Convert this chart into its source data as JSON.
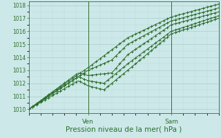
{
  "bg_color": "#cce8e8",
  "grid_major_color": "#aacccc",
  "grid_minor_color": "#bbdddd",
  "line_color": "#2d6e2d",
  "xlabel": "Pression niveau de la mer( hPa )",
  "xlabel_fontsize": 7.5,
  "ylim": [
    1009.7,
    1018.3
  ],
  "xlim": [
    0,
    96
  ],
  "yticks": [
    1010,
    1011,
    1012,
    1013,
    1014,
    1015,
    1016,
    1017,
    1018
  ],
  "tick_label_color": "#2d6e2d",
  "ven_x": 30,
  "sam_x": 72,
  "series": [
    [
      [
        0,
        1010
      ],
      [
        30,
        1013.2
      ],
      [
        50,
        1015.5
      ],
      [
        72,
        1017.1
      ],
      [
        96,
        1018.1
      ]
    ],
    [
      [
        0,
        1010
      ],
      [
        30,
        1013.0
      ],
      [
        42,
        1013.8
      ],
      [
        50,
        1015.0
      ],
      [
        72,
        1016.8
      ],
      [
        96,
        1017.8
      ]
    ],
    [
      [
        0,
        1010
      ],
      [
        25,
        1012.8
      ],
      [
        30,
        1012.6
      ],
      [
        42,
        1012.8
      ],
      [
        50,
        1014.2
      ],
      [
        72,
        1016.5
      ],
      [
        96,
        1017.5
      ]
    ],
    [
      [
        0,
        1010
      ],
      [
        25,
        1012.5
      ],
      [
        30,
        1012.2
      ],
      [
        38,
        1012.0
      ],
      [
        50,
        1013.5
      ],
      [
        72,
        1016.0
      ],
      [
        96,
        1017.2
      ]
    ],
    [
      [
        0,
        1010
      ],
      [
        25,
        1012.2
      ],
      [
        30,
        1011.8
      ],
      [
        38,
        1011.5
      ],
      [
        50,
        1013.0
      ],
      [
        72,
        1015.8
      ],
      [
        96,
        1017.0
      ]
    ]
  ],
  "marker_every": 3
}
